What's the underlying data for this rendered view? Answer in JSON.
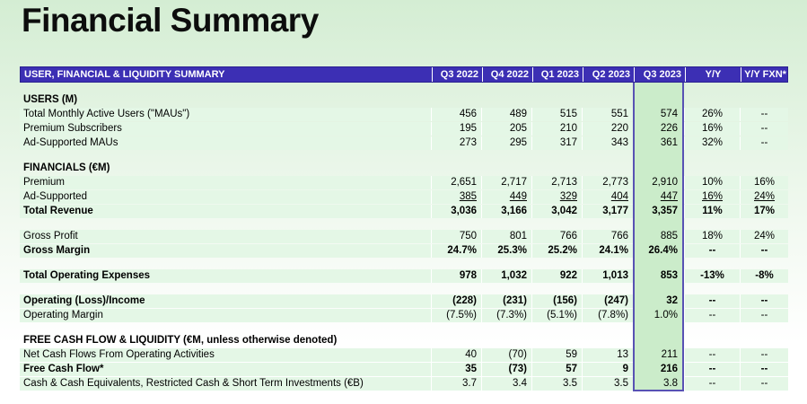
{
  "page": {
    "title": "Financial Summary"
  },
  "colors": {
    "header_bar": "#3c2fb4",
    "row_band": "#e4f7e6",
    "highlight_fill": "#cbecca",
    "highlight_border": "#5852b4",
    "background_top": "#d4edd3",
    "background_bottom": "#ffffff"
  },
  "table": {
    "header": {
      "label": "USER, FINANCIAL & LIQUIDITY SUMMARY",
      "columns": [
        "Q3 2022",
        "Q4 2022",
        "Q1 2023",
        "Q2 2023",
        "Q3 2023",
        "Y/Y",
        "Y/Y FXN*"
      ]
    },
    "highlight_column": "Q3 2023",
    "highlight_index": 4,
    "rows": [
      {
        "type": "blank"
      },
      {
        "type": "section",
        "label": "USERS (M)"
      },
      {
        "type": "data",
        "label": "Total Monthly Active Users (\"MAUs\")",
        "values": [
          "456",
          "489",
          "515",
          "551",
          "574",
          "26%",
          "--"
        ]
      },
      {
        "type": "data",
        "label": "Premium Subscribers",
        "values": [
          "195",
          "205",
          "210",
          "220",
          "226",
          "16%",
          "--"
        ]
      },
      {
        "type": "data",
        "label": "Ad-Supported MAUs",
        "values": [
          "273",
          "295",
          "317",
          "343",
          "361",
          "32%",
          "--"
        ]
      },
      {
        "type": "blank"
      },
      {
        "type": "section",
        "label": "FINANCIALS (€M)"
      },
      {
        "type": "data",
        "label": "Premium",
        "values": [
          "2,651",
          "2,717",
          "2,713",
          "2,773",
          "2,910",
          "10%",
          "16%"
        ]
      },
      {
        "type": "data",
        "underline": true,
        "label": "Ad-Supported",
        "values": [
          "385",
          "449",
          "329",
          "404",
          "447",
          "16%",
          "24%"
        ]
      },
      {
        "type": "data",
        "bold": true,
        "label": "Total Revenue",
        "values": [
          "3,036",
          "3,166",
          "3,042",
          "3,177",
          "3,357",
          "11%",
          "17%"
        ]
      },
      {
        "type": "blank"
      },
      {
        "type": "data",
        "label": "Gross Profit",
        "values": [
          "750",
          "801",
          "766",
          "766",
          "885",
          "18%",
          "24%"
        ]
      },
      {
        "type": "data",
        "bold": true,
        "label": "Gross Margin",
        "values": [
          "24.7%",
          "25.3%",
          "25.2%",
          "24.1%",
          "26.4%",
          "--",
          "--"
        ]
      },
      {
        "type": "blank"
      },
      {
        "type": "data",
        "bold": true,
        "label": "Total Operating Expenses",
        "values": [
          "978",
          "1,032",
          "922",
          "1,013",
          "853",
          "-13%",
          "-8%"
        ]
      },
      {
        "type": "blank"
      },
      {
        "type": "data",
        "bold": true,
        "label": "Operating (Loss)/Income",
        "values": [
          "(228)",
          "(231)",
          "(156)",
          "(247)",
          "32",
          "--",
          "--"
        ]
      },
      {
        "type": "data",
        "label": "Operating Margin",
        "values": [
          "(7.5%)",
          "(7.3%)",
          "(5.1%)",
          "(7.8%)",
          "1.0%",
          "--",
          "--"
        ]
      },
      {
        "type": "blank"
      },
      {
        "type": "section",
        "label": "FREE CASH FLOW & LIQUIDITY (€M, unless otherwise denoted)"
      },
      {
        "type": "data",
        "label": "Net Cash Flows From Operating Activities",
        "values": [
          "40",
          "(70)",
          "59",
          "13",
          "211",
          "--",
          "--"
        ]
      },
      {
        "type": "data",
        "bold": true,
        "label": "Free Cash Flow*",
        "values": [
          "35",
          "(73)",
          "57",
          "9",
          "216",
          "--",
          "--"
        ]
      },
      {
        "type": "data",
        "label": "Cash & Cash Equivalents, Restricted Cash & Short Term Investments (€B)",
        "values": [
          "3.7",
          "3.4",
          "3.5",
          "3.5",
          "3.8",
          "--",
          "--"
        ]
      }
    ]
  }
}
